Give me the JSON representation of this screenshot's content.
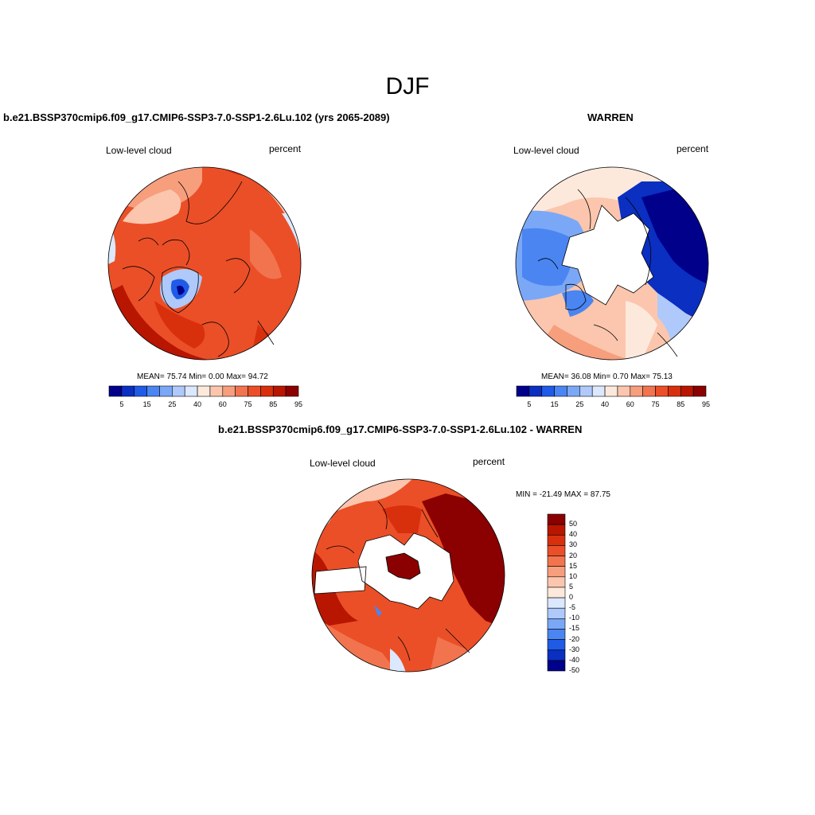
{
  "title": "DJF",
  "colors": {
    "abs_scale": [
      "#00008b",
      "#0a2fc1",
      "#1f5be6",
      "#4a85f2",
      "#7aa8f6",
      "#aec9fa",
      "#dbe8fd",
      "#fde9dc",
      "#fbc6ad",
      "#f79e7d",
      "#f2744f",
      "#eb4f27",
      "#d8300d",
      "#b81600",
      "#8b0000"
    ],
    "diff_scale": [
      "#8b0000",
      "#b81600",
      "#d8300d",
      "#eb4f27",
      "#f2744f",
      "#f79e7d",
      "#fbc6ad",
      "#fde9dc",
      "#dbe8fd",
      "#aec9fa",
      "#7aa8f6",
      "#4a85f2",
      "#1f5be6",
      "#0a2fc1",
      "#00008b"
    ]
  },
  "panel_left": {
    "title": "b.e21.BSSP370cmip6.f09_g17.CMIP6-SSP3-7.0-SSP1-2.6Lu.102 (yrs 2065-2089)",
    "variable": "Low-level cloud",
    "units": "percent",
    "stats": "MEAN=  75.74  Min=   0.00  Max=  94.72",
    "colorbar_labels": [
      "5",
      "15",
      "25",
      "40",
      "60",
      "75",
      "85",
      "95"
    ]
  },
  "panel_right": {
    "title": "WARREN",
    "variable": "Low-level cloud",
    "units": "percent",
    "stats": "MEAN=  36.08  Min=   0.70  Max=  75.13",
    "colorbar_labels": [
      "5",
      "15",
      "25",
      "40",
      "60",
      "75",
      "85",
      "95"
    ]
  },
  "panel_diff": {
    "title": "b.e21.BSSP370cmip6.f09_g17.CMIP6-SSP3-7.0-SSP1-2.6Lu.102 - WARREN",
    "variable": "Low-level cloud",
    "units": "percent",
    "minmax": "MIN = -21.49 MAX =  87.75",
    "colorbar_labels": [
      "50",
      "40",
      "30",
      "20",
      "15",
      "10",
      "5",
      "0",
      "-5",
      "-10",
      "-15",
      "-20",
      "-30",
      "-40",
      "-50"
    ]
  }
}
